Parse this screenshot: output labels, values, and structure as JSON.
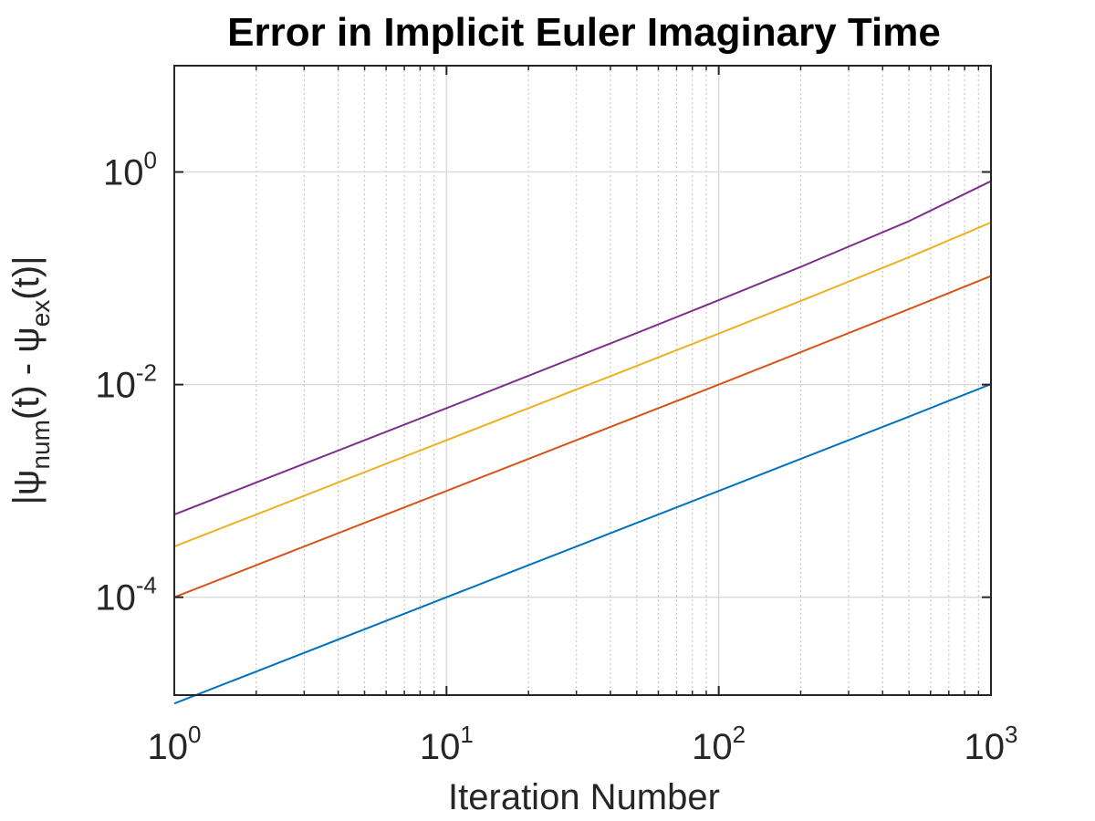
{
  "chart_data": {
    "type": "line",
    "title": "Error in Implicit Euler Imaginary Time",
    "xlabel": "Iteration Number",
    "ylabel": {
      "prefix": "|ψ",
      "sub1": "num",
      "middle": "(t) - ψ",
      "sub2": "ex",
      "suffix": "(t)|"
    },
    "x_scale": "log",
    "y_scale": "log",
    "xlim": [
      1,
      1000
    ],
    "ylim": [
      1.2e-05,
      10
    ],
    "grid": true,
    "minor_grid_x": true,
    "x_ticks": [
      {
        "base": "10",
        "exp": "0",
        "value": 1
      },
      {
        "base": "10",
        "exp": "1",
        "value": 10
      },
      {
        "base": "10",
        "exp": "2",
        "value": 100
      },
      {
        "base": "10",
        "exp": "3",
        "value": 1000
      }
    ],
    "y_ticks": [
      {
        "base": "10",
        "exp": "0",
        "value": 1
      },
      {
        "base": "10",
        "exp": "-2",
        "value": 0.01
      },
      {
        "base": "10",
        "exp": "-4",
        "value": 0.0001
      }
    ],
    "x": [
      1,
      2,
      5,
      10,
      20,
      50,
      100,
      200,
      500,
      1000
    ],
    "series": [
      {
        "color": "#0072BD",
        "values": [
          1e-05,
          2e-05,
          5e-05,
          0.0001,
          0.0002,
          0.0005,
          0.001,
          0.002,
          0.005,
          0.0101
        ]
      },
      {
        "color": "#D95319",
        "values": [
          0.0001,
          0.0002,
          0.0005,
          0.001,
          0.002,
          0.005,
          0.01,
          0.0202,
          0.0513,
          0.105
        ]
      },
      {
        "color": "#EDB120",
        "values": [
          0.0003,
          0.0006,
          0.0015,
          0.003,
          0.006,
          0.015,
          0.0302,
          0.0612,
          0.158,
          0.335
        ]
      },
      {
        "color": "#7E2F8E",
        "values": [
          0.0006,
          0.0012,
          0.003,
          0.006,
          0.0121,
          0.0306,
          0.0622,
          0.128,
          0.345,
          0.82
        ]
      }
    ]
  }
}
